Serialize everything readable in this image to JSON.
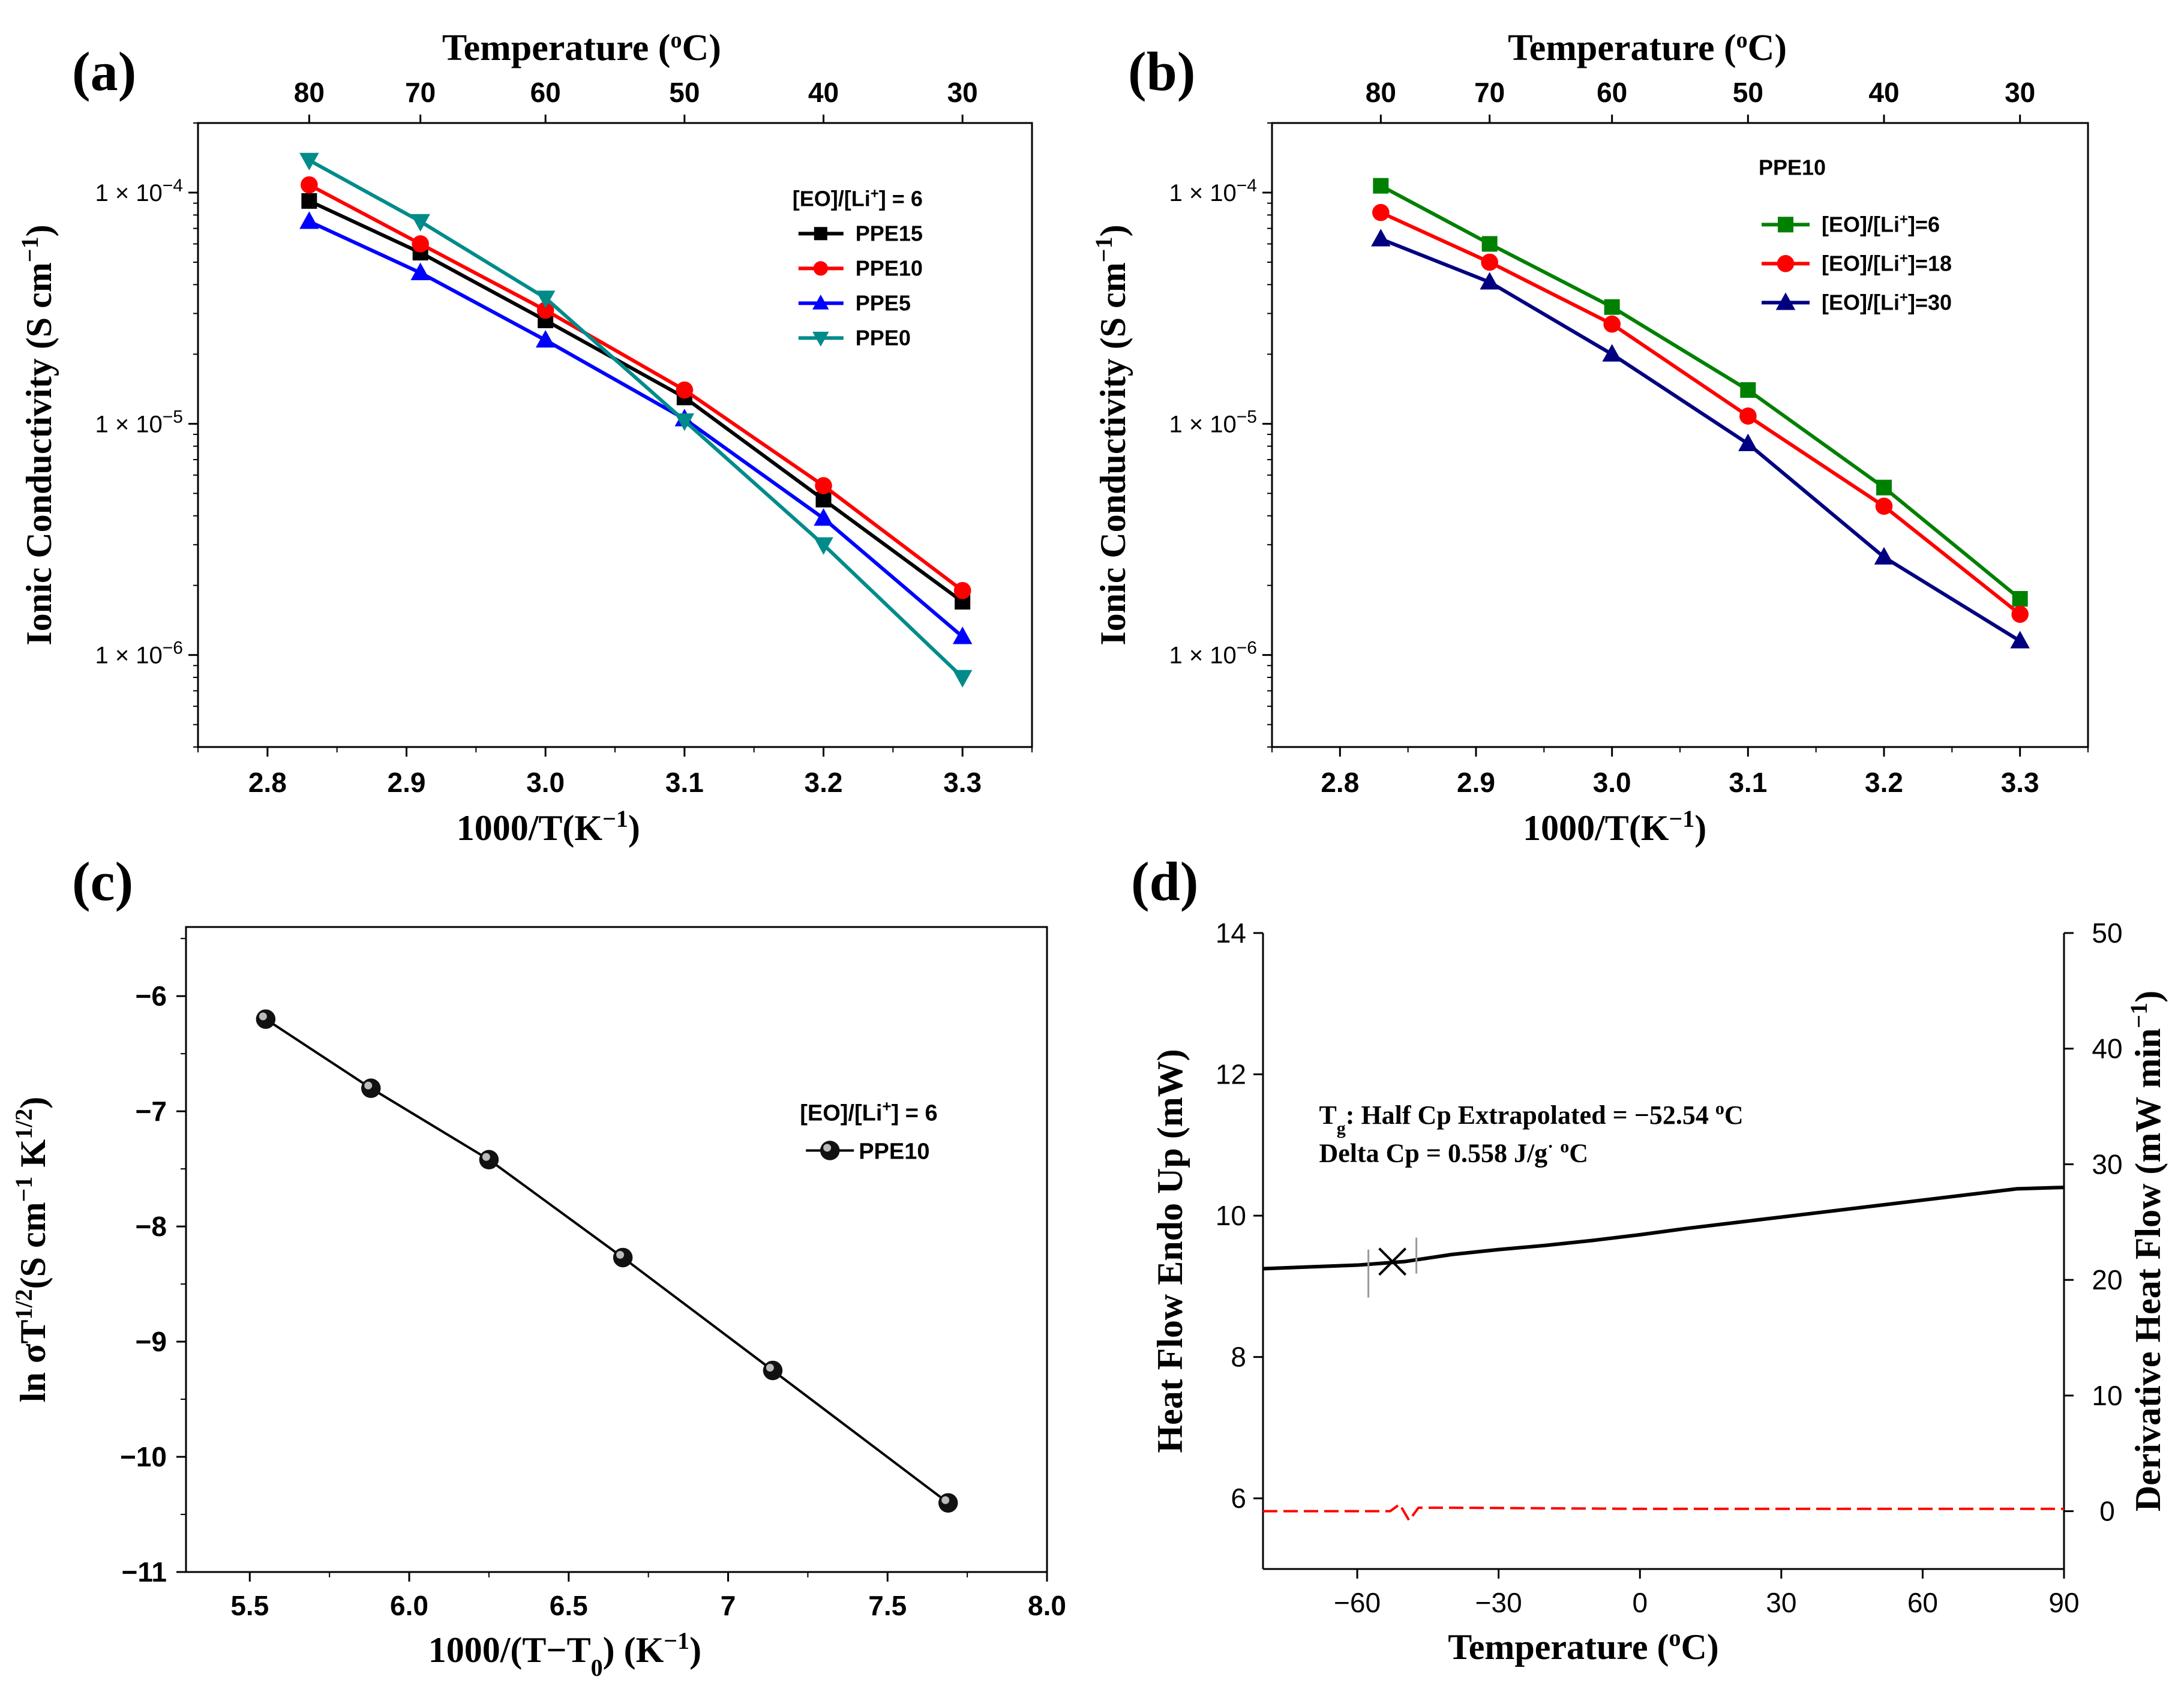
{
  "chart_data": [
    {
      "panel": "(a)",
      "type": "line",
      "top_axis": {
        "label": "Temperature (oC)",
        "ticks": [
          "80",
          "70",
          "60",
          "50",
          "40",
          "30"
        ]
      },
      "xlabel": "1000/T(K−1)",
      "ylabel": "Ionic Conductivity (S cm−1)",
      "y_scale": "log",
      "xlim": [
        2.75,
        3.35
      ],
      "ylim": [
        4e-07,
        0.0002
      ],
      "x_ticks": [
        "2.8",
        "2.9",
        "3.0",
        "3.1",
        "3.2",
        "3.3"
      ],
      "y_ticks": [
        "1 × 10−4",
        "1 × 10−5",
        "1 × 10−6"
      ],
      "legend_title": "[EO]/[Li+] = 6",
      "legend_position": "top-right",
      "x": [
        2.83,
        2.91,
        3.0,
        3.1,
        3.2,
        3.3
      ],
      "series": [
        {
          "name": "PPE15",
          "color": "#000000",
          "marker": "square",
          "values": [
            9.2e-05,
            5.5e-05,
            2.8e-05,
            1.3e-05,
            4.7e-06,
            1.7e-06
          ]
        },
        {
          "name": "PPE10",
          "color": "#ff0000",
          "marker": "circle",
          "values": [
            0.000108,
            6e-05,
            3.1e-05,
            1.4e-05,
            5.4e-06,
            1.9e-06
          ]
        },
        {
          "name": "PPE5",
          "color": "#0000ff",
          "marker": "triangle-up",
          "values": [
            7.5e-05,
            4.5e-05,
            2.3e-05,
            1.05e-05,
            3.9e-06,
            1.2e-06
          ]
        },
        {
          "name": "PPE0",
          "color": "#008b8b",
          "marker": "triangle-down",
          "values": [
            0.000138,
            7.5e-05,
            3.5e-05,
            1.03e-05,
            3e-06,
            8e-07
          ]
        }
      ]
    },
    {
      "panel": "(b)",
      "type": "line",
      "top_axis": {
        "label": "Temperature (oC)",
        "ticks": [
          "80",
          "70",
          "60",
          "50",
          "40",
          "30"
        ]
      },
      "xlabel": "1000/T(K−1)",
      "ylabel": "Ionic Conductivity (S cm−1)",
      "y_scale": "log",
      "xlim": [
        2.75,
        3.35
      ],
      "ylim": [
        4e-07,
        0.0002
      ],
      "x_ticks": [
        "2.8",
        "2.9",
        "3.0",
        "3.1",
        "3.2",
        "3.3"
      ],
      "y_ticks": [
        "1 × 10−4",
        "1 × 10−5",
        "1 × 10−6"
      ],
      "legend_title": "PPE10",
      "legend_position": "top-right",
      "x": [
        2.83,
        2.91,
        3.0,
        3.1,
        3.2,
        3.3
      ],
      "series": [
        {
          "name": "[EO]/[Li+]=6",
          "color": "#008000",
          "marker": "square",
          "values": [
            0.000107,
            6e-05,
            3.2e-05,
            1.4e-05,
            5.3e-06,
            1.75e-06
          ]
        },
        {
          "name": "[EO]/[Li+]=18",
          "color": "#ff0000",
          "marker": "circle",
          "values": [
            8.2e-05,
            5e-05,
            2.7e-05,
            1.08e-05,
            4.4e-06,
            1.5e-06
          ]
        },
        {
          "name": "[EO]/[Li+]=30",
          "color": "#000080",
          "marker": "triangle-up",
          "values": [
            6.3e-05,
            4.1e-05,
            2e-05,
            8.2e-06,
            2.65e-06,
            1.15e-06
          ]
        }
      ]
    },
    {
      "panel": "(c)",
      "type": "line",
      "xlabel": "1000/(T−T0) (K−1)",
      "ylabel": "ln σT1/2(S cm−1 K1/2)",
      "xlim": [
        5.3,
        8.0
      ],
      "ylim": [
        -11,
        -5.4
      ],
      "x_ticks": [
        "5.5",
        "6.0",
        "6.5",
        "7",
        "7.5",
        "8.0"
      ],
      "y_ticks": [
        "−6",
        "−7",
        "−8",
        "−9",
        "−10",
        "−11"
      ],
      "legend_title": "[EO]/[Li+] = 6",
      "legend_position": "right",
      "series": [
        {
          "name": "PPE10",
          "color": "#000000",
          "marker": "sphere",
          "x": [
            5.55,
            5.88,
            6.25,
            6.67,
            7.14,
            7.69
          ],
          "values": [
            -6.2,
            -6.8,
            -7.42,
            -8.27,
            -9.25,
            -10.4
          ]
        }
      ]
    },
    {
      "panel": "(d)",
      "type": "line",
      "xlabel": "Temperature (oC)",
      "ylabel": "Heat Flow Endo Up (mW)",
      "y2label": "Derivative Heat Flow (mW min−1)",
      "xlim": [
        -80,
        90
      ],
      "ylim": [
        5,
        14
      ],
      "y2lim": [
        -5,
        50
      ],
      "x_ticks": [
        "−60",
        "−30",
        "0",
        "30",
        "60",
        "90"
      ],
      "y_ticks": [
        "6",
        "8",
        "10",
        "12",
        "14"
      ],
      "y2_ticks": [
        "0",
        "10",
        "20",
        "30",
        "40",
        "50"
      ],
      "annotations": [
        "Tg: Half Cp Extrapolated = −52.54 oC",
        "Delta Cp = 0.558 J/g· oC"
      ],
      "series": [
        {
          "color": "#000000",
          "style": "solid",
          "axis": "left",
          "x": [
            -80,
            -60,
            -50,
            -40,
            -30,
            -20,
            -10,
            0,
            10,
            20,
            30,
            40,
            50,
            60,
            70,
            80,
            90
          ],
          "values": [
            9.25,
            9.3,
            9.35,
            9.45,
            9.52,
            9.58,
            9.65,
            9.73,
            9.82,
            9.9,
            9.98,
            10.06,
            10.14,
            10.22,
            10.3,
            10.38,
            10.4
          ]
        },
        {
          "color": "#ff0000",
          "style": "dashed",
          "axis": "right",
          "x": [
            -80,
            -53,
            -51,
            -49,
            -47,
            -45,
            -40,
            0,
            90
          ],
          "values": [
            0,
            0,
            0.6,
            -0.8,
            0.3,
            0.3,
            0.3,
            0.2,
            0.2
          ]
        }
      ],
      "tg_marker": {
        "x": -52.54,
        "y": 9.35
      }
    }
  ]
}
